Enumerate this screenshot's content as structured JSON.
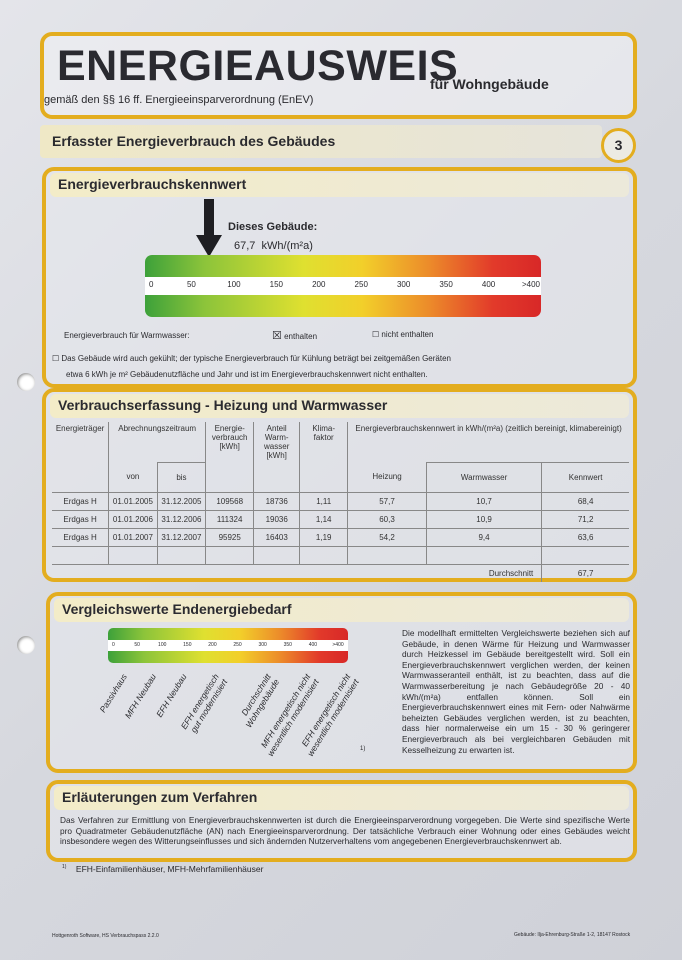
{
  "title": {
    "main": "ENERGIEAUSWEIS",
    "suffix": "für Wohngebäude",
    "subtitle": "gemäß den §§ 16 ff. Energieeinsparverordnung (EnEV)"
  },
  "section": {
    "title": "Erfasster Energieverbrauch des Gebäudes",
    "page_number": "3"
  },
  "kennwert": {
    "header": "Energieverbrauchskennwert",
    "building_label": "Dieses Gebäude:",
    "value": "67,7",
    "unit": "kWh/(m²a)",
    "value_numeric": 67.7,
    "ticks": [
      "0",
      "50",
      "100",
      "150",
      "200",
      "250",
      "300",
      "350",
      "400",
      ">400"
    ],
    "warmwasser_label": "Energieverbrauch für Warmwasser:",
    "option_enthalten": "enthalten",
    "option_nicht": "nicht enthalten",
    "enthalten_checked": true,
    "cooling_note_1": "Das Gebäude wird auch gekühlt; der typische Energieverbrauch für Kühlung beträgt bei zeitgemäßen Geräten",
    "cooling_note_2": "etwa 6 kWh je m² Gebäudenutzfläche und Jahr und ist im Energieverbrauchskennwert nicht enthalten.",
    "cooling_checked": false
  },
  "erfassung": {
    "header": "Verbrauchserfassung - Heizung und Warmwasser",
    "columns": {
      "traeger": "Energieträger",
      "zeitraum": "Abrechnungszeitraum",
      "von": "von",
      "bis": "bis",
      "verbrauch": "Energie-verbrauch [kWh]",
      "anteil": "Anteil Warm-wasser [kWh]",
      "klima": "Klima-faktor",
      "kennwert_group": "Energieverbrauchskennwert in kWh/(m²a) (zeitlich bereinigt, klimabereinigt)",
      "heizung": "Heizung",
      "warmwasser": "Warmwasser",
      "kennwert": "Kennwert"
    },
    "rows": [
      {
        "traeger": "Erdgas H",
        "von": "01.01.2005",
        "bis": "31.12.2005",
        "verbrauch": "109568",
        "anteil": "18736",
        "klima": "1,11",
        "heizung": "57,7",
        "warmwasser": "10,7",
        "kennwert": "68,4"
      },
      {
        "traeger": "Erdgas H",
        "von": "01.01.2006",
        "bis": "31.12.2006",
        "verbrauch": "111324",
        "anteil": "19036",
        "klima": "1,14",
        "heizung": "60,3",
        "warmwasser": "10,9",
        "kennwert": "71,2"
      },
      {
        "traeger": "Erdgas H",
        "von": "01.01.2007",
        "bis": "31.12.2007",
        "verbrauch": "95925",
        "anteil": "16403",
        "klima": "1,19",
        "heizung": "54,2",
        "warmwasser": "9,4",
        "kennwert": "63,6"
      }
    ],
    "average_label": "Durchschnitt",
    "average_value": "67,7"
  },
  "vergleich": {
    "header": "Vergleichswerte Endenergiebedarf",
    "labels": [
      "Passivhaus",
      "MFH Neubau",
      "EFH Neubau",
      "EFH energetisch\ngut modernisiert",
      "Durchschnitt\nWohngebäude",
      "MFH energetisch nicht\nwesentlich modernisiert",
      "EFH energetisch nicht\nwesentlich modernisiert"
    ],
    "footnote_marker": "1)",
    "text": "Die modellhaft ermittelten Vergleichswerte beziehen sich auf Gebäude, in denen Wärme für Heizung und Warmwasser durch Heizkessel im Gebäude bereitgestellt wird. Soll ein Energieverbrauchskennwert verglichen werden, der keinen Warmwasseranteil enthält, ist zu beachten, dass auf die Warmwasserbereitung je nach Gebäudegröße 20 - 40 kWh/(m²a) entfallen können. Soll ein Energieverbrauchskennwert eines mit Fern- oder Nahwärme beheizten Gebäudes verglichen werden, ist zu beachten, dass hier normalerweise ein um 15 - 30 % geringerer Energieverbrauch als bei vergleichbaren Gebäuden mit Kesselheizung zu erwarten ist."
  },
  "erlaeuterung": {
    "header": "Erläuterungen zum Verfahren",
    "text": "Das Verfahren zur Ermittlung von Energieverbrauchskennwerten ist durch die Energieeinsparverordnung vorgegeben. Die Werte sind spezifische Werte pro Quadratmeter Gebäudenutzfläche (AN) nach Energieeinsparverordnung. Der tatsächliche Verbrauch einer Wohnung oder eines Gebäudes weicht insbesondere wegen des Witterungseinflusses und sich ändernden Nutzerverhaltens vom angegebenen Energieverbrauchskennwert ab."
  },
  "footnote": {
    "marker": "1)",
    "text": "EFH-Einfamilienhäuser, MFH-Mehrfamilienhäuser"
  },
  "footer": {
    "left": "Hottgenroth Software, HS Verbrauchspass 2.2.0",
    "right": "Gebäude: Ilja-Ehrenburg-Straße 1-2, 18147 Rostock"
  },
  "colors": {
    "border": "#e3ad1f",
    "green": "#3da13a",
    "yellow": "#dfe030",
    "red": "#d82828"
  }
}
